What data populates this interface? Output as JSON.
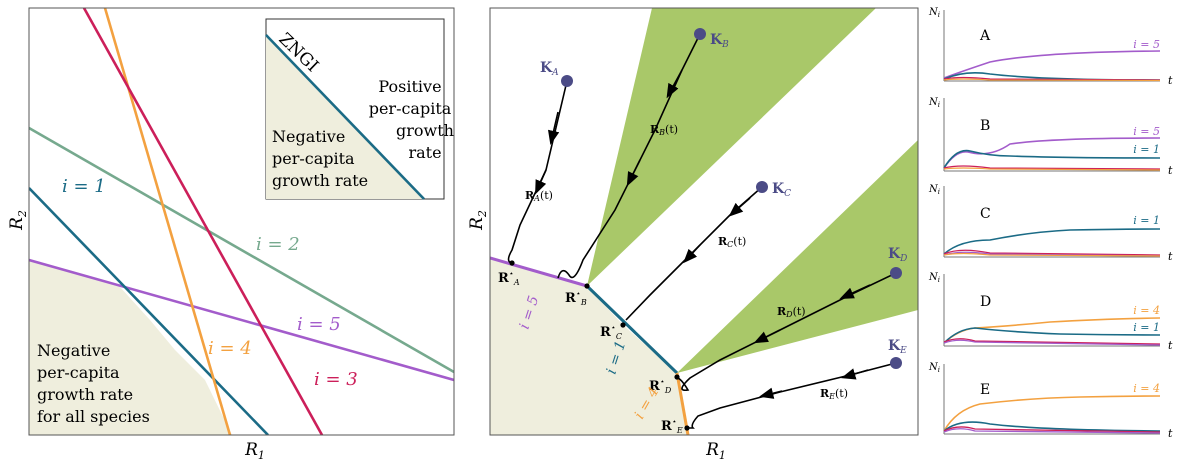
{
  "colors": {
    "teal": "#1b6b86",
    "green": "#76a98e",
    "crimson": "#cc1f5a",
    "orange": "#f3a140",
    "purple": "#a35ccb",
    "beige": "#efeedd",
    "green_fill": "#a9c869",
    "navy_dot": "#4b4b86"
  },
  "panel_left": {
    "xlabel": "R1",
    "ylabel": "R2",
    "inset_zngi": "ZNGI",
    "inset_positive": [
      "Positive",
      "per-capita",
      "growth",
      "rate"
    ],
    "inset_negative": [
      "Negative",
      "per-capita",
      "growth rate"
    ],
    "region_label": [
      "Negative",
      "per-capita",
      "growth rate",
      "for all species"
    ],
    "lines": [
      {
        "label": "i = 1",
        "color": "teal"
      },
      {
        "label": "i = 2",
        "color": "green"
      },
      {
        "label": "i = 3",
        "color": "crimson"
      },
      {
        "label": "i = 4",
        "color": "orange"
      },
      {
        "label": "i = 5",
        "color": "purple"
      }
    ]
  },
  "panel_middle": {
    "xlabel": "R1",
    "ylabel": "R2",
    "supply_points": [
      "KA",
      "KB",
      "KC",
      "KD",
      "KE"
    ],
    "trajectories": [
      "RA(t)",
      "RB(t)",
      "RC(t)",
      "RD(t)",
      "RE(t)"
    ],
    "equilibria": [
      "R*A",
      "R*B",
      "R*C",
      "R*D",
      "R*E"
    ],
    "boundary_labels": [
      "i = 5",
      "i = 1",
      "i = 4"
    ]
  },
  "panel_right": {
    "ylabel": "Ni",
    "xlabel": "t",
    "subpanels": [
      {
        "id": "A",
        "labels": [
          {
            "text": "i = 5",
            "color": "purple"
          }
        ]
      },
      {
        "id": "B",
        "labels": [
          {
            "text": "i = 5",
            "color": "purple"
          },
          {
            "text": "i = 1",
            "color": "teal"
          }
        ]
      },
      {
        "id": "C",
        "labels": [
          {
            "text": "i = 1",
            "color": "teal"
          }
        ]
      },
      {
        "id": "D",
        "labels": [
          {
            "text": "i = 4",
            "color": "orange"
          },
          {
            "text": "i = 1",
            "color": "teal"
          }
        ]
      },
      {
        "id": "E",
        "labels": [
          {
            "text": "i = 4",
            "color": "orange"
          }
        ]
      }
    ]
  }
}
